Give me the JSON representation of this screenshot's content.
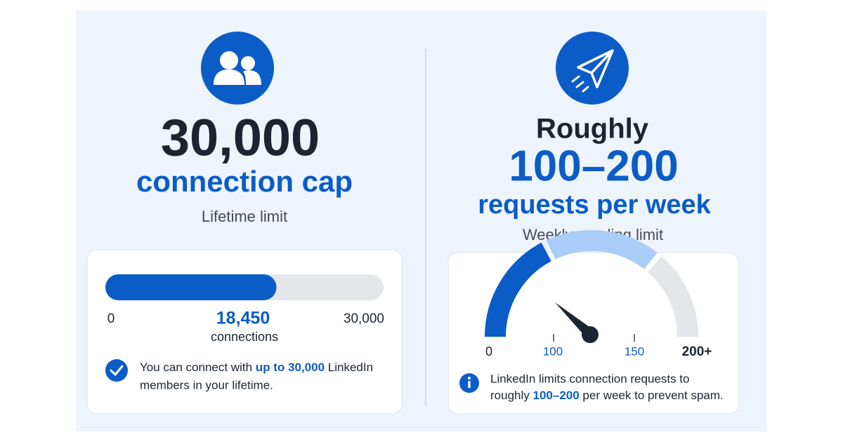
{
  "left": {
    "headline": "30,000",
    "subheadline": "connection cap",
    "caption": "Lifetime limit",
    "progress": {
      "min": 0,
      "current": {
        "value": 18450,
        "label": "18,450"
      },
      "unit": "connections",
      "max": {
        "value": 30000,
        "label": "30,000"
      }
    },
    "note": {
      "before": "You can connect with",
      "highlight": "up to 30,000",
      "after": "LinkedIn",
      "line2": "members in your lifetime."
    }
  },
  "right": {
    "lead": "Roughly",
    "headline": "100–200",
    "subheadline": "requests per week",
    "caption": "Weekly sending limit",
    "gauge": {
      "labels": [
        "0",
        "100",
        "150",
        "200+"
      ]
    },
    "note": {
      "line1": "LinkedIn limits connection requests to",
      "before": "roughly",
      "highlight": "100–200",
      "after": "per week to prevent spam."
    }
  }
}
